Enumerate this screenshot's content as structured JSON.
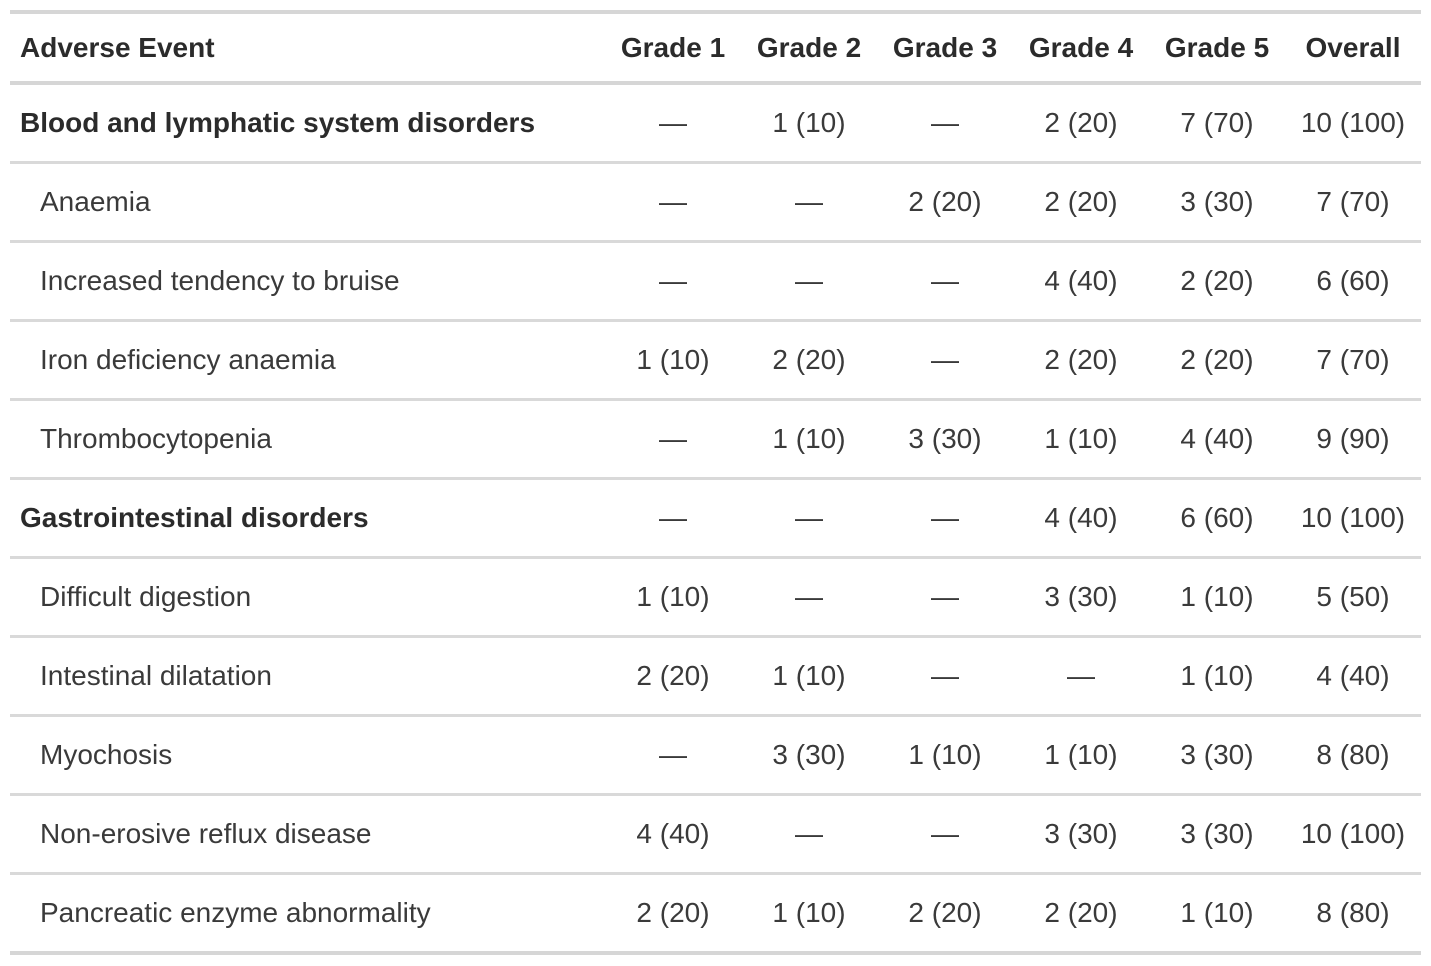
{
  "table": {
    "columns": [
      {
        "key": "adverse-event",
        "label": "Adverse Event"
      },
      {
        "key": "grade-1",
        "label": "Grade 1"
      },
      {
        "key": "grade-2",
        "label": "Grade 2"
      },
      {
        "key": "grade-3",
        "label": "Grade 3"
      },
      {
        "key": "grade-4",
        "label": "Grade 4"
      },
      {
        "key": "grade-5",
        "label": "Grade 5"
      },
      {
        "key": "overall",
        "label": "Overall"
      }
    ],
    "rows": [
      {
        "label": "Blood and lymphatic system disorders",
        "type": "category",
        "values": [
          "—",
          "1 (10)",
          "—",
          "2 (20)",
          "7 (70)",
          "10 (100)"
        ]
      },
      {
        "label": "Anaemia",
        "type": "sub",
        "values": [
          "—",
          "—",
          "2 (20)",
          "2 (20)",
          "3 (30)",
          "7 (70)"
        ]
      },
      {
        "label": "Increased tendency to bruise",
        "type": "sub",
        "values": [
          "—",
          "—",
          "—",
          "4 (40)",
          "2 (20)",
          "6 (60)"
        ]
      },
      {
        "label": "Iron deficiency anaemia",
        "type": "sub",
        "values": [
          "1 (10)",
          "2 (20)",
          "—",
          "2 (20)",
          "2 (20)",
          "7 (70)"
        ]
      },
      {
        "label": "Thrombocytopenia",
        "type": "sub",
        "values": [
          "—",
          "1 (10)",
          "3 (30)",
          "1 (10)",
          "4 (40)",
          "9 (90)"
        ]
      },
      {
        "label": "Gastrointestinal disorders",
        "type": "category",
        "values": [
          "—",
          "—",
          "—",
          "4 (40)",
          "6 (60)",
          "10 (100)"
        ]
      },
      {
        "label": "Difficult digestion",
        "type": "sub",
        "values": [
          "1 (10)",
          "—",
          "—",
          "3 (30)",
          "1 (10)",
          "5 (50)"
        ]
      },
      {
        "label": "Intestinal dilatation",
        "type": "sub",
        "values": [
          "2 (20)",
          "1 (10)",
          "—",
          "—",
          "1 (10)",
          "4 (40)"
        ]
      },
      {
        "label": "Myochosis",
        "type": "sub",
        "values": [
          "—",
          "3 (30)",
          "1 (10)",
          "1 (10)",
          "3 (30)",
          "8 (80)"
        ]
      },
      {
        "label": "Non-erosive reflux disease",
        "type": "sub",
        "values": [
          "4 (40)",
          "—",
          "—",
          "3 (30)",
          "3 (30)",
          "10 (100)"
        ]
      },
      {
        "label": "Pancreatic enzyme abnormality",
        "type": "sub",
        "values": [
          "2 (20)",
          "1 (10)",
          "2 (20)",
          "2 (20)",
          "1 (10)",
          "8 (80)"
        ]
      }
    ]
  },
  "colors": {
    "background": "#ffffff",
    "text": "#3a3a3a",
    "heading_text": "#2b2b2b",
    "border": "#d6d6d6",
    "row_divider": "#d9d9d9"
  }
}
